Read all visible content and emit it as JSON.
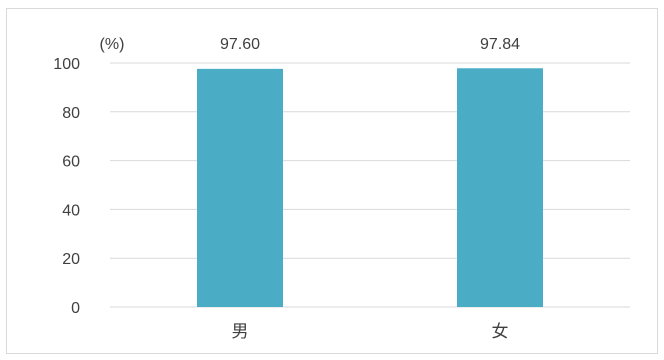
{
  "chart_data": {
    "type": "bar",
    "unit_label": "(%)",
    "categories": [
      "男",
      "女"
    ],
    "values": [
      97.6,
      97.84
    ],
    "data_labels": [
      "97.60",
      "97.84"
    ],
    "ylim": [
      0,
      100
    ],
    "yticks": [
      0,
      20,
      40,
      60,
      80,
      100
    ],
    "grid": true,
    "bar_color": "#4bacc6",
    "gridline_color": "#d9d9d9"
  }
}
